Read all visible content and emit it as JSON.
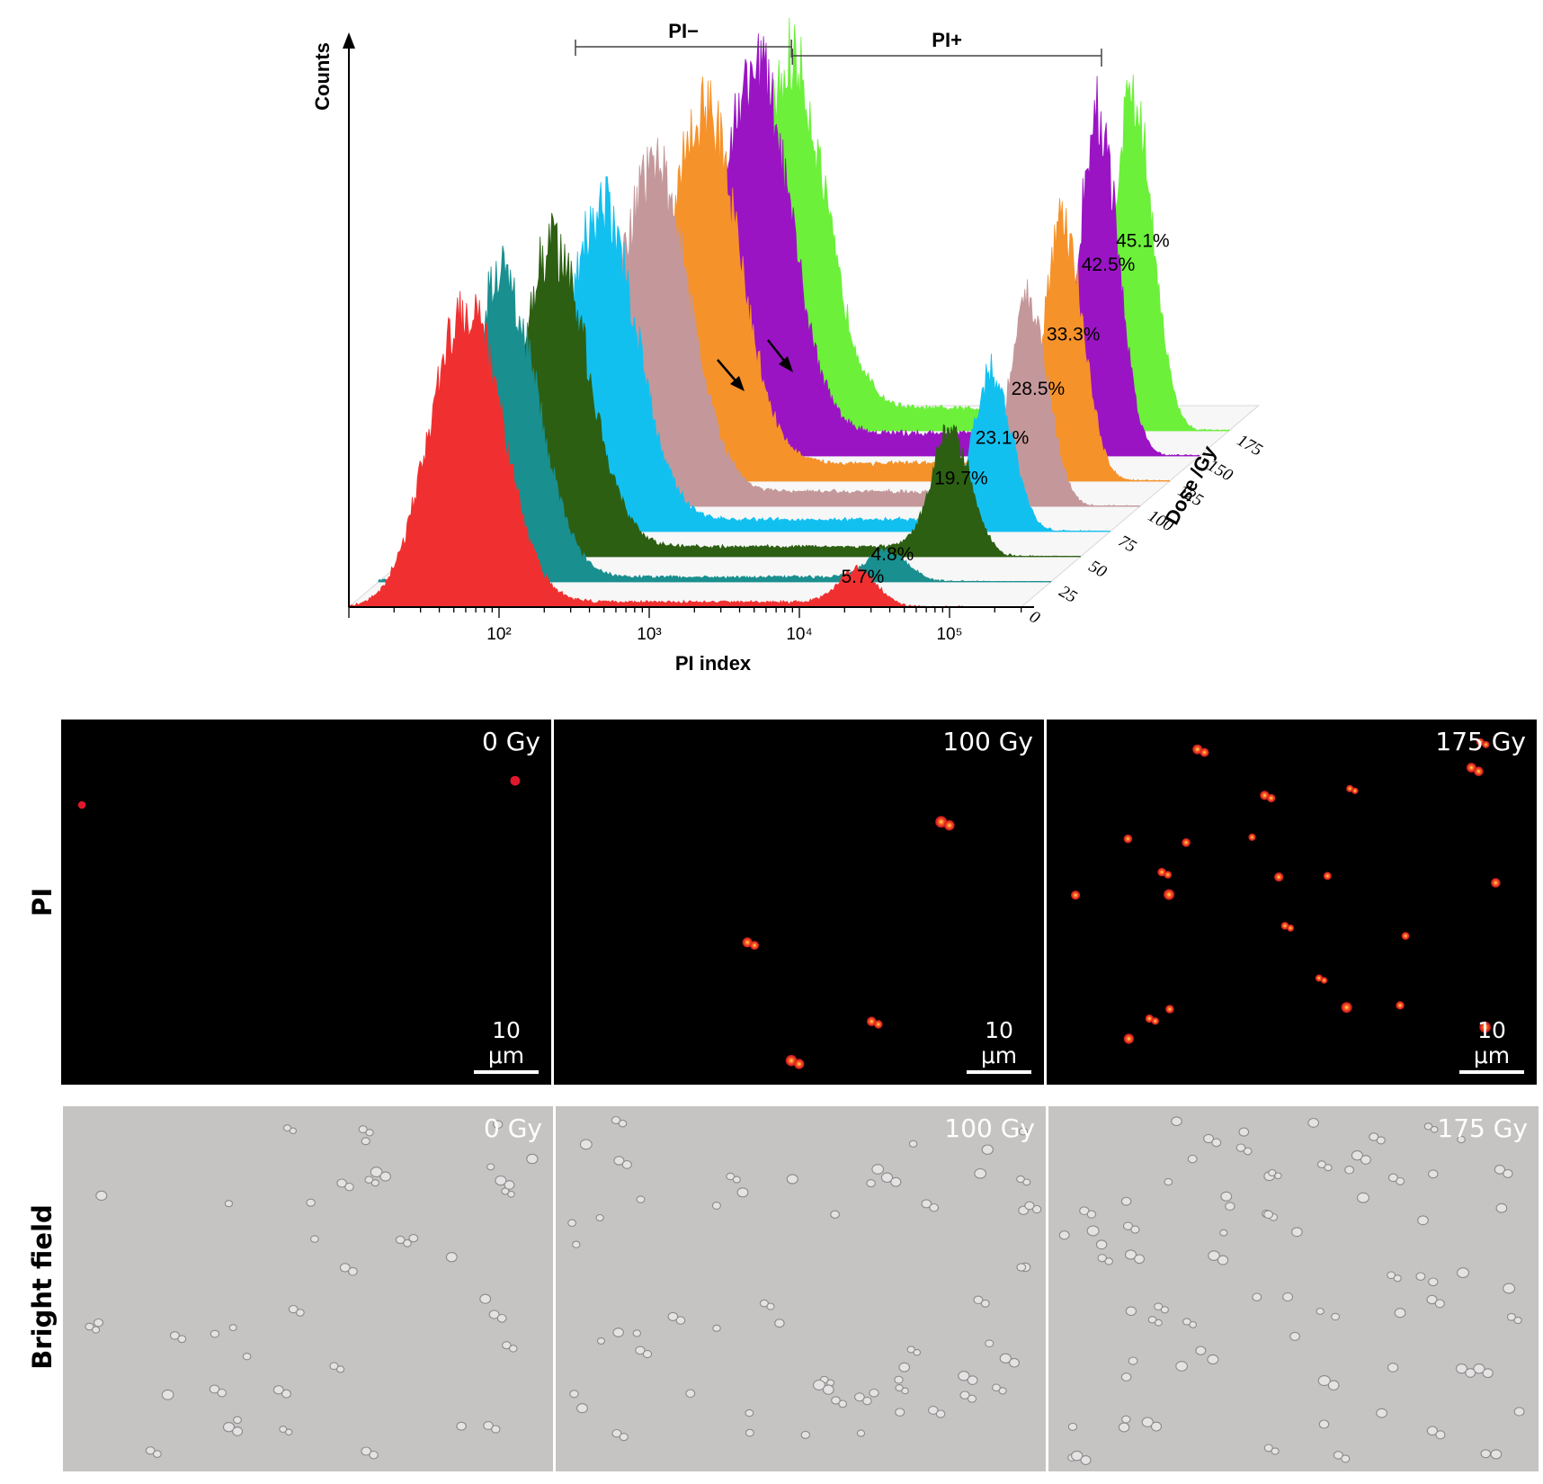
{
  "chart_data": {
    "type": "area",
    "ylabel": "Counts",
    "xlabel": "PI index",
    "zlabel": "Dose /Gy",
    "x_scale": "log",
    "xlim": [
      10,
      300000
    ],
    "x_ticks": [
      {
        "value": 100,
        "label": "10²"
      },
      {
        "value": 1000,
        "label": "10³"
      },
      {
        "value": 10000,
        "label": "10⁴"
      },
      {
        "value": 100000,
        "label": "10⁵"
      }
    ],
    "gates": [
      {
        "label": "PI−",
        "from": 300,
        "to": 8500
      },
      {
        "label": "PI+",
        "from": 8500,
        "to": 850000
      }
    ],
    "series": [
      {
        "dose": "0",
        "color": "#f03030",
        "pi_positive_label": "5.7%",
        "pi_positive_percent": 5.7,
        "neg_peak_PI": 60,
        "neg_peak_rel_height": 1.0,
        "pos_peak_PI": 25000
      },
      {
        "dose": "25",
        "color": "#1a8f8f",
        "pi_positive_label": "4.8%",
        "pi_positive_percent": 4.8,
        "neg_peak_PI": 65,
        "neg_peak_rel_height": 1.02,
        "pos_peak_PI": 25000
      },
      {
        "dose": "50",
        "color": "#2c5f12",
        "pi_positive_label": "19.7%",
        "pi_positive_percent": 19.7,
        "neg_peak_PI": 90,
        "neg_peak_rel_height": 1.02,
        "pos_peak_PI": 42000
      },
      {
        "dose": "75",
        "color": "#12c0f0",
        "pi_positive_label": "23.1%",
        "pi_positive_percent": 23.1,
        "neg_peak_PI": 120,
        "neg_peak_rel_height": 1.07,
        "pos_peak_PI": 50000
      },
      {
        "dose": "100",
        "color": "#c4989a",
        "pi_positive_label": "28.5%",
        "pi_positive_percent": 28.5,
        "neg_peak_PI": 170,
        "neg_peak_rel_height": 1.12,
        "pos_peak_PI": 55000
      },
      {
        "dose": "125",
        "color": "#f6922a",
        "pi_positive_label": "33.3%",
        "pi_positive_percent": 33.3,
        "neg_peak_PI": 230,
        "neg_peak_rel_height": 1.22,
        "pos_peak_PI": 60000
      },
      {
        "dose": "150",
        "color": "#9a14c4",
        "pi_positive_label": "42.5%",
        "pi_positive_percent": 42.5,
        "neg_peak_PI": 320,
        "neg_peak_rel_height": 1.27,
        "pos_peak_PI": 65000
      },
      {
        "dose": "175",
        "color": "#6cf03a",
        "pi_positive_label": "45.1%",
        "pi_positive_percent": 45.1,
        "neg_peak_PI": 350,
        "neg_peak_rel_height": 1.19,
        "pos_peak_PI": 70000
      }
    ]
  },
  "micrographs": {
    "rows": [
      {
        "label": "PI",
        "type": "fluorescence"
      },
      {
        "label": "Bright field",
        "type": "brightfield"
      }
    ],
    "panels": [
      {
        "dose": "0 Gy",
        "scale_bar": "10 μm",
        "pi_cell_count": 2,
        "bf_dose": "0 Gy"
      },
      {
        "dose": "100 Gy",
        "scale_bar": "10 μm",
        "pi_cell_count": 4,
        "bf_dose": "100 Gy"
      },
      {
        "dose": "175 Gy",
        "scale_bar": "10 μm",
        "pi_cell_count": 24,
        "bf_dose": "175 Gy"
      }
    ]
  }
}
